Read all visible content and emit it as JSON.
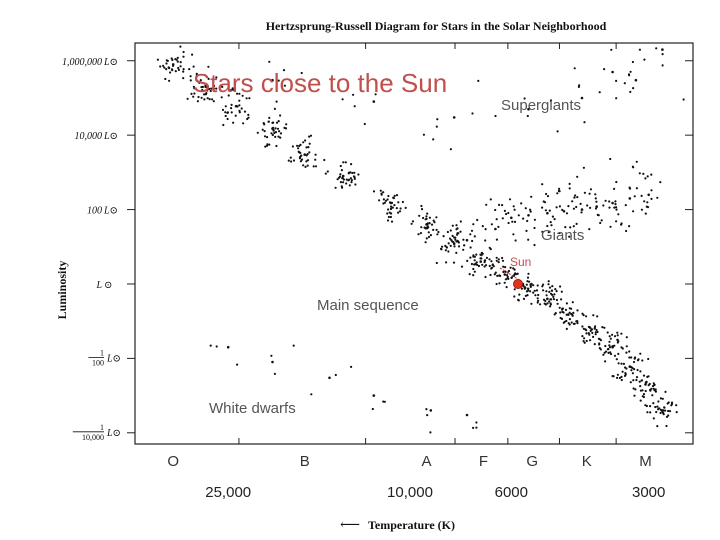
{
  "chart_data": {
    "type": "scatter",
    "title": "Hertzsprung-Russell Diagram for Stars in the Solar Neighborhood",
    "overlay_title": "Stars close to the Sun",
    "xlabel": "Temperature (K)",
    "x_direction_arrow": "⟵",
    "ylabel": "Luminosity",
    "x_scale": "log (reversed: hot left, cool right)",
    "y_scale": "log",
    "xlim": [
      40000,
      2400
    ],
    "ylim": [
      5e-05,
      3000000
    ],
    "grid": false,
    "y_ticks": [
      {
        "value": 1000000,
        "label": "1,000,000",
        "unit": "L⊙"
      },
      {
        "value": 10000,
        "label": "10,000",
        "unit": "L⊙"
      },
      {
        "value": 100,
        "label": "100",
        "unit": "L⊙"
      },
      {
        "value": 1,
        "label": "L",
        "unit": "⊙"
      },
      {
        "value": 0.01,
        "numerator": "1",
        "denominator": "100",
        "unit": "L⊙"
      },
      {
        "value": 0.0001,
        "numerator": "1",
        "denominator": "10,000",
        "unit": "L⊙"
      }
    ],
    "spectral_classes": [
      {
        "label": "O",
        "temperature": 33000
      },
      {
        "label": "B",
        "temperature": 17000
      },
      {
        "label": "A",
        "temperature": 9200
      },
      {
        "label": "F",
        "temperature": 6900
      },
      {
        "label": "G",
        "temperature": 5400
      },
      {
        "label": "K",
        "temperature": 4100
      },
      {
        "label": "M",
        "temperature": 3050
      }
    ],
    "temperature_ticks": [
      {
        "label": "25,000",
        "temperature": 25000
      },
      {
        "label": "10,000",
        "temperature": 10000
      },
      {
        "label": "6000",
        "temperature": 6000
      },
      {
        "label": "3000",
        "temperature": 3000
      }
    ],
    "region_labels": {
      "supergiants": "Supergiants",
      "giants": "Giants",
      "main_sequence": "Main sequence",
      "white_dwarfs": "White dwarfs"
    },
    "sun": {
      "label": "Sun",
      "temperature": 5800,
      "luminosity": 1
    },
    "series": [
      {
        "kind": "main-sequence",
        "points": [
          {
            "x": 33000,
            "y": 800000
          },
          {
            "x": 28000,
            "y": 200000
          },
          {
            "x": 24000,
            "y": 60000
          },
          {
            "x": 20000,
            "y": 15000
          },
          {
            "x": 17000,
            "y": 3000
          },
          {
            "x": 14000,
            "y": 800
          },
          {
            "x": 11000,
            "y": 150
          },
          {
            "x": 9200,
            "y": 40
          },
          {
            "x": 8000,
            "y": 12
          },
          {
            "x": 7000,
            "y": 4
          },
          {
            "x": 6200,
            "y": 1.8
          },
          {
            "x": 5600,
            "y": 0.8
          },
          {
            "x": 5000,
            "y": 0.4
          },
          {
            "x": 4500,
            "y": 0.15
          },
          {
            "x": 4000,
            "y": 0.06
          },
          {
            "x": 3600,
            "y": 0.02
          },
          {
            "x": 3300,
            "y": 0.006
          },
          {
            "x": 3050,
            "y": 0.002
          },
          {
            "x": 2800,
            "y": 0.0004
          }
        ]
      },
      {
        "kind": "giants",
        "points": [
          {
            "x": 6000,
            "y": 60
          },
          {
            "x": 5500,
            "y": 70
          },
          {
            "x": 5000,
            "y": 80
          },
          {
            "x": 4600,
            "y": 90
          },
          {
            "x": 4200,
            "y": 100
          },
          {
            "x": 3900,
            "y": 120
          },
          {
            "x": 3600,
            "y": 150
          },
          {
            "x": 3300,
            "y": 200
          },
          {
            "x": 3000,
            "y": 250
          },
          {
            "x": 6500,
            "y": 30
          },
          {
            "x": 7500,
            "y": 15
          }
        ]
      },
      {
        "kind": "supergiants",
        "points": [
          {
            "x": 20000,
            "y": 300000
          },
          {
            "x": 12000,
            "y": 80000
          },
          {
            "x": 8000,
            "y": 30000
          },
          {
            "x": 5500,
            "y": 50000
          },
          {
            "x": 4200,
            "y": 100000
          },
          {
            "x": 3600,
            "y": 500000
          },
          {
            "x": 3200,
            "y": 300000
          },
          {
            "x": 2800,
            "y": 2000000
          }
        ]
      },
      {
        "kind": "white-dwarfs",
        "points": [
          {
            "x": 25000,
            "y": 0.02
          },
          {
            "x": 20000,
            "y": 0.008
          },
          {
            "x": 15000,
            "y": 0.003
          },
          {
            "x": 12000,
            "y": 0.001
          },
          {
            "x": 9000,
            "y": 0.0004
          },
          {
            "x": 7500,
            "y": 0.0003
          }
        ]
      }
    ]
  }
}
